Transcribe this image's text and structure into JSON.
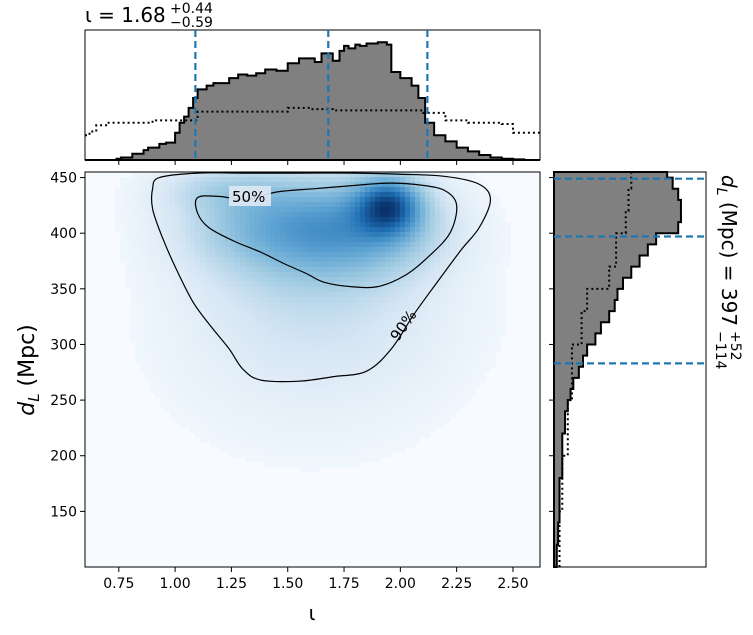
{
  "chart_data": {
    "type": "corner_plot",
    "parameters": {
      "x": {
        "symbol": "ι",
        "median": 1.68,
        "plus": 0.44,
        "minus": 0.59,
        "lower_line": 1.09,
        "upper_line": 2.12
      },
      "y": {
        "symbol": "d_L",
        "unit": "Mpc",
        "median": 397,
        "plus": 52,
        "minus": 114,
        "lower_line": 283,
        "upper_line": 449
      }
    },
    "top_title": {
      "prefix": "ι = ",
      "value": "1.68",
      "plus": "+0.44",
      "minus": "−0.59"
    },
    "right_title": {
      "prefix_main": "d",
      "prefix_sub": "L",
      "prefix_rest": " (Mpc) = ",
      "value": "397",
      "plus": "+52",
      "minus": "−114"
    },
    "joint": {
      "type": "heatmap",
      "xlim": [
        0.6,
        2.62
      ],
      "ylim": [
        100,
        455
      ],
      "xticks": [
        "0.75",
        "1.00",
        "1.25",
        "1.50",
        "1.75",
        "2.00",
        "2.25",
        "2.50"
      ],
      "yticks": [
        "150",
        "200",
        "250",
        "300",
        "350",
        "400",
        "450"
      ],
      "xlabel": "ι",
      "ylabel": "d_L (Mpc)",
      "ylabel_main": "d",
      "ylabel_sub": "L",
      "ylabel_rest": " (Mpc)",
      "contour_labels": [
        "50%",
        "90%"
      ],
      "contour_50": [
        [
          1.32,
          430
        ],
        [
          1.45,
          437
        ],
        [
          1.62,
          440
        ],
        [
          1.8,
          443
        ],
        [
          1.95,
          445
        ],
        [
          2.1,
          443
        ],
        [
          2.2,
          438
        ],
        [
          2.25,
          425
        ],
        [
          2.22,
          400
        ],
        [
          2.12,
          378
        ],
        [
          2.02,
          362
        ],
        [
          1.9,
          352
        ],
        [
          1.78,
          352
        ],
        [
          1.66,
          356
        ],
        [
          1.58,
          364
        ],
        [
          1.48,
          373
        ],
        [
          1.38,
          383
        ],
        [
          1.26,
          393
        ],
        [
          1.15,
          405
        ],
        [
          1.1,
          418
        ],
        [
          1.1,
          432
        ],
        [
          1.2,
          433
        ]
      ],
      "contour_90": [
        [
          0.9,
          440
        ],
        [
          0.93,
          450
        ],
        [
          1.1,
          454
        ],
        [
          1.3,
          454
        ],
        [
          1.55,
          454
        ],
        [
          1.8,
          454
        ],
        [
          2.0,
          453
        ],
        [
          2.2,
          451
        ],
        [
          2.35,
          444
        ],
        [
          2.4,
          430
        ],
        [
          2.35,
          405
        ],
        [
          2.27,
          385
        ],
        [
          2.16,
          355
        ],
        [
          2.06,
          327
        ],
        [
          1.96,
          296
        ],
        [
          1.85,
          276
        ],
        [
          1.7,
          271
        ],
        [
          1.55,
          267
        ],
        [
          1.38,
          268
        ],
        [
          1.3,
          278
        ],
        [
          1.24,
          296
        ],
        [
          1.16,
          316
        ],
        [
          1.08,
          338
        ],
        [
          1.0,
          370
        ],
        [
          0.94,
          398
        ],
        [
          0.9,
          422
        ]
      ],
      "density_peaks": [
        {
          "x": 1.95,
          "y": 425,
          "amp": 1.0,
          "sx": 0.1,
          "sy": 18
        },
        {
          "x": 1.85,
          "y": 405,
          "amp": 0.55,
          "sx": 0.25,
          "sy": 30
        },
        {
          "x": 1.55,
          "y": 400,
          "amp": 0.42,
          "sx": 0.3,
          "sy": 38
        },
        {
          "x": 1.35,
          "y": 410,
          "amp": 0.3,
          "sx": 0.25,
          "sy": 28
        },
        {
          "x": 1.65,
          "y": 330,
          "amp": 0.18,
          "sx": 0.4,
          "sy": 45
        },
        {
          "x": 1.6,
          "y": 270,
          "amp": 0.08,
          "sx": 0.45,
          "sy": 60
        },
        {
          "x": 1.2,
          "y": 440,
          "amp": 0.22,
          "sx": 0.2,
          "sy": 14
        }
      ]
    },
    "top_hist": {
      "posterior": [
        [
          0.6,
          0
        ],
        [
          0.74,
          0
        ],
        [
          0.76,
          0.01
        ],
        [
          0.81,
          0.02
        ],
        [
          0.86,
          0.05
        ],
        [
          0.88,
          0.08
        ],
        [
          0.9,
          0.1
        ],
        [
          0.93,
          0.1
        ],
        [
          0.96,
          0.13
        ],
        [
          1.0,
          0.14
        ],
        [
          1.02,
          0.22
        ],
        [
          1.04,
          0.3
        ],
        [
          1.06,
          0.35
        ],
        [
          1.08,
          0.42
        ],
        [
          1.1,
          0.5
        ],
        [
          1.14,
          0.57
        ],
        [
          1.17,
          0.6
        ],
        [
          1.2,
          0.62
        ],
        [
          1.24,
          0.62
        ],
        [
          1.28,
          0.66
        ],
        [
          1.32,
          0.69
        ],
        [
          1.36,
          0.68
        ],
        [
          1.4,
          0.7
        ],
        [
          1.45,
          0.73
        ],
        [
          1.5,
          0.72
        ],
        [
          1.55,
          0.78
        ],
        [
          1.6,
          0.82
        ],
        [
          1.62,
          0.82
        ],
        [
          1.65,
          0.79
        ],
        [
          1.7,
          0.86
        ],
        [
          1.73,
          0.8
        ],
        [
          1.75,
          0.88
        ],
        [
          1.77,
          0.92
        ],
        [
          1.8,
          0.9
        ],
        [
          1.82,
          0.93
        ],
        [
          1.85,
          0.92
        ],
        [
          1.9,
          0.94
        ],
        [
          1.94,
          0.95
        ],
        [
          1.96,
          0.93
        ],
        [
          2.0,
          0.71
        ],
        [
          2.05,
          0.66
        ],
        [
          2.08,
          0.6
        ],
        [
          2.11,
          0.5
        ],
        [
          2.15,
          0.3
        ],
        [
          2.2,
          0.2
        ],
        [
          2.25,
          0.15
        ],
        [
          2.3,
          0.1
        ],
        [
          2.35,
          0.07
        ],
        [
          2.4,
          0.04
        ],
        [
          2.45,
          0.02
        ],
        [
          2.5,
          0.01
        ],
        [
          2.55,
          0.005
        ],
        [
          2.62,
          0
        ]
      ],
      "prior": [
        [
          0.6,
          0.2
        ],
        [
          0.62,
          0.23
        ],
        [
          0.65,
          0.28
        ],
        [
          0.7,
          0.3
        ],
        [
          0.85,
          0.3
        ],
        [
          0.9,
          0.32
        ],
        [
          1.1,
          0.39
        ],
        [
          1.5,
          0.42
        ],
        [
          1.6,
          0.41
        ],
        [
          1.7,
          0.4
        ],
        [
          1.9,
          0.4
        ],
        [
          2.1,
          0.38
        ],
        [
          2.2,
          0.32
        ],
        [
          2.3,
          0.3
        ],
        [
          2.45,
          0.29
        ],
        [
          2.5,
          0.22
        ],
        [
          2.62,
          0.22
        ]
      ],
      "ylim": [
        0,
        1.0
      ]
    },
    "right_hist": {
      "posterior": [
        [
          100,
          0
        ],
        [
          120,
          0.02
        ],
        [
          140,
          0.03
        ],
        [
          150,
          0.04
        ],
        [
          180,
          0.04
        ],
        [
          200,
          0.06
        ],
        [
          220,
          0.06
        ],
        [
          240,
          0.08
        ],
        [
          250,
          0.1
        ],
        [
          260,
          0.12
        ],
        [
          270,
          0.14
        ],
        [
          280,
          0.18
        ],
        [
          290,
          0.21
        ],
        [
          300,
          0.24
        ],
        [
          310,
          0.3
        ],
        [
          320,
          0.34
        ],
        [
          330,
          0.4
        ],
        [
          340,
          0.44
        ],
        [
          350,
          0.46
        ],
        [
          360,
          0.5
        ],
        [
          370,
          0.56
        ],
        [
          380,
          0.62
        ],
        [
          390,
          0.68
        ],
        [
          400,
          0.74
        ],
        [
          410,
          0.9
        ],
        [
          420,
          0.92
        ],
        [
          430,
          0.92
        ],
        [
          440,
          0.9
        ],
        [
          450,
          0.86
        ],
        [
          455,
          0.82
        ]
      ],
      "prior": [
        [
          100,
          0.04
        ],
        [
          150,
          0.06
        ],
        [
          200,
          0.1
        ],
        [
          250,
          0.13
        ],
        [
          300,
          0.2
        ],
        [
          330,
          0.24
        ],
        [
          350,
          0.4
        ],
        [
          370,
          0.45
        ],
        [
          400,
          0.52
        ],
        [
          420,
          0.54
        ],
        [
          440,
          0.56
        ],
        [
          455,
          0.57
        ]
      ],
      "xlim": [
        0,
        1.0
      ]
    }
  }
}
